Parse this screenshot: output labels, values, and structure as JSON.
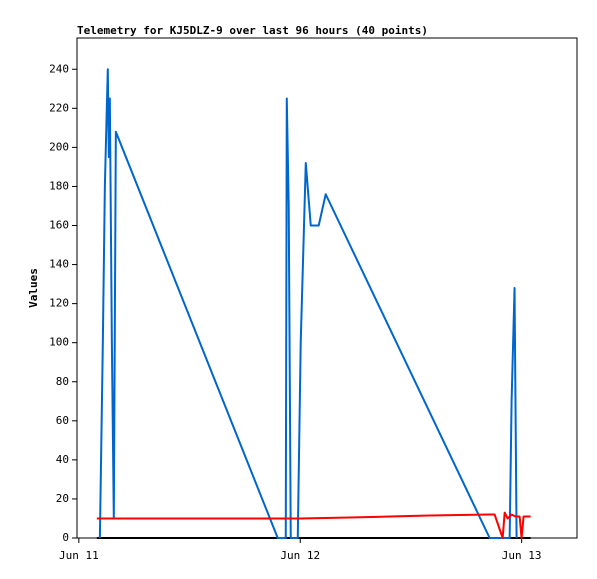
{
  "chart_data": {
    "type": "line",
    "title": "Telemetry for KJ5DLZ-9 over last 96 hours (40 points)",
    "y_label": "Values",
    "xlim": [
      -0.2,
      54
    ],
    "ylim": [
      0,
      256
    ],
    "xticks": [
      {
        "value": 0,
        "label": "Jun 11"
      },
      {
        "value": 24,
        "label": "Jun 12"
      },
      {
        "value": 48,
        "label": "Jun 13"
      }
    ],
    "yticks": [
      0,
      20,
      40,
      60,
      80,
      100,
      120,
      140,
      160,
      180,
      200,
      220,
      240
    ],
    "grid": false,
    "series": [
      {
        "color": "#000000",
        "x": [
          1.95,
          48.97
        ],
        "values": [
          0,
          0
        ]
      },
      {
        "color": "#0066cc",
        "x": [
          2.28,
          2.6,
          2.82,
          3.03,
          3.14,
          3.25,
          3.36,
          3.58,
          3.79,
          4.01,
          21.56,
          22.43,
          22.54,
          22.75,
          22.97,
          23.73,
          24.05,
          24.6,
          25.14,
          26.0,
          26.76,
          44.53,
          46.7,
          46.91,
          47.13,
          47.23,
          47.45
        ],
        "values": [
          0,
          100,
          180,
          220,
          240,
          195,
          225,
          100,
          10,
          208,
          0,
          0,
          225,
          170,
          0,
          0,
          100,
          192,
          160,
          160,
          176,
          0,
          0,
          70,
          110,
          128,
          0
        ]
      },
      {
        "color": "#ff0000",
        "x": [
          1.95,
          23.94,
          29.36,
          33.69,
          38.03,
          44.53,
          45.07,
          45.94,
          46.16,
          46.48,
          46.91,
          47.34,
          47.78,
          47.99,
          48.21,
          48.97
        ],
        "values": [
          10,
          10,
          10.5,
          11,
          11.5,
          12,
          12,
          0,
          13,
          10,
          12,
          11,
          11,
          0,
          11,
          11
        ]
      }
    ]
  }
}
